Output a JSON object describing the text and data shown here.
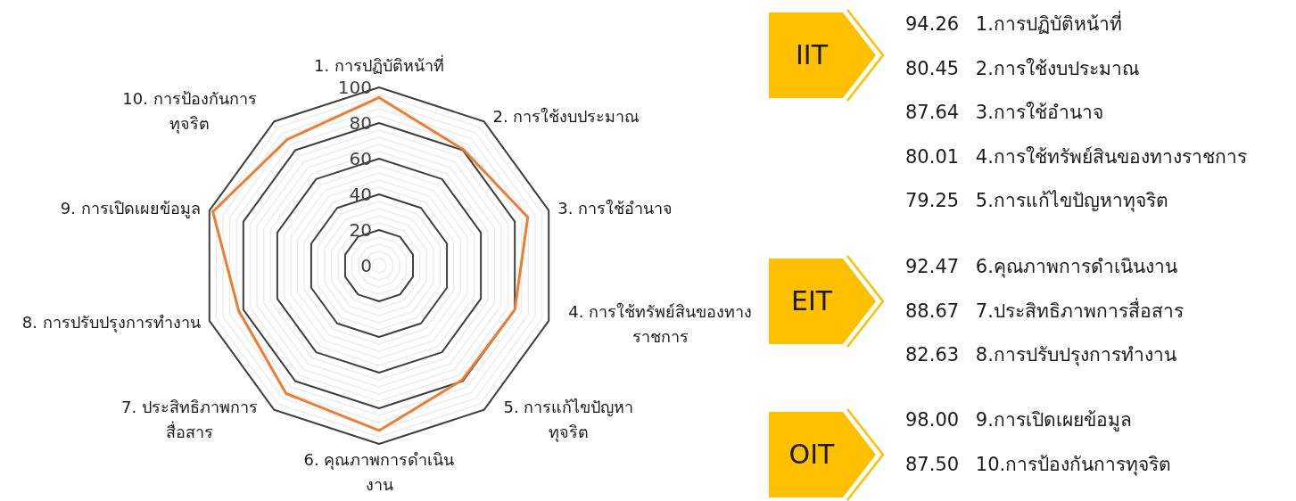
{
  "chart_data": {
    "type": "radar",
    "categories": [
      "1. การปฏิบัติหน้าที่",
      "2. การใช้งบประมาณ",
      "3. การใช้อำนาจ",
      "4. การใช้ทรัพย์สินของทางราชการ",
      "5. การแก้ไขปัญหาทุจริต",
      "6. คุณภาพการดำเนินงาน",
      "7. ประสิทธิภาพการสื่อสาร",
      "8. การปรับปรุงการทำงาน",
      "9. การเปิดเผยข้อมูล",
      "10. การป้องกันการทุจริต"
    ],
    "series": [
      {
        "color": "#ed7d31",
        "values": [
          94.26,
          80.45,
          87.64,
          80.01,
          79.25,
          92.47,
          88.67,
          82.63,
          98.0,
          87.5
        ]
      }
    ],
    "ylim": [
      0,
      100
    ],
    "yticks": [
      0,
      20,
      40,
      60,
      80,
      100
    ],
    "grid": true,
    "marker": "none",
    "line_style": "solid",
    "annotations": [
      "IIT",
      "94.26 1.การปฏิบัติหน้าที่",
      "80.45 2.การใช้งบประมาณ",
      "87.64 3.การใช้อำนาจ",
      "80.01 4.การใช้ทรัพย์สินของทางราชการ",
      "79.25 5.การแก้ไขปัญหาทุจริต",
      "EIT",
      "92.47 6.คุณภาพการดำเนินงาน",
      "88.67 7.ประสิทธิภาพการสื่อสาร",
      "82.63 8.การปรับปรุงการทำงาน",
      "OIT",
      "98.00 9.การเปิดเผยข้อมูล",
      "87.50 10.การป้องกันการทุจริต"
    ]
  }
}
